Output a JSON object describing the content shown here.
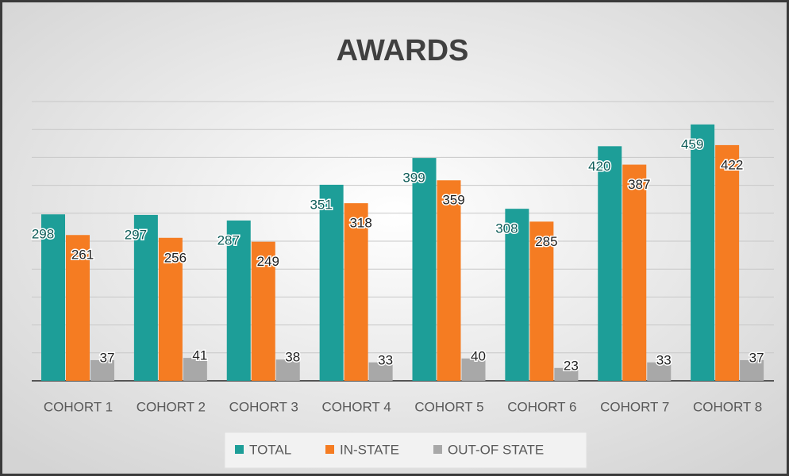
{
  "chart_data": {
    "type": "bar",
    "title": "AWARDS",
    "categories": [
      "COHORT 1",
      "COHORT 2",
      "COHORT 3",
      "COHORT 4",
      "COHORT 5",
      "COHORT 6",
      "COHORT 7",
      "COHORT 8"
    ],
    "series": [
      {
        "name": "TOTAL",
        "color": "#1d9e98",
        "values": [
          298,
          297,
          287,
          351,
          399,
          308,
          420,
          459
        ]
      },
      {
        "name": "IN-STATE",
        "color": "#f57c22",
        "values": [
          261,
          256,
          249,
          318,
          359,
          285,
          387,
          422
        ]
      },
      {
        "name": "OUT-OF STATE",
        "color": "#a8a8a8",
        "values": [
          37,
          41,
          38,
          33,
          40,
          23,
          33,
          37
        ]
      }
    ],
    "ylim": [
      0,
      500
    ],
    "yticks": [
      0,
      50,
      100,
      150,
      200,
      250,
      300,
      350,
      400,
      450,
      500
    ],
    "grid": true,
    "legend": "bottom"
  }
}
